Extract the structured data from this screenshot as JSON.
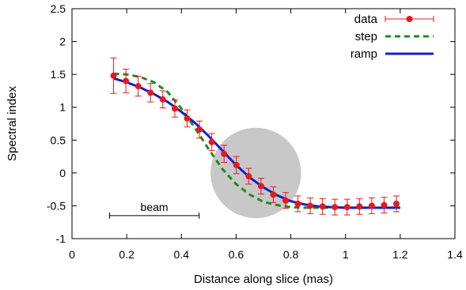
{
  "chart_data": {
    "type": "scatter",
    "title": "",
    "xlabel": "Distance along slice (mas)",
    "ylabel": "Spectral index",
    "xlim": [
      0,
      1.4
    ],
    "ylim": [
      -1,
      2.5
    ],
    "x_ticks": [
      0,
      0.2,
      0.4,
      0.6,
      0.8,
      1,
      1.2,
      1.4
    ],
    "x_tick_labels": [
      "0",
      "0.2",
      "0.4",
      "0.6",
      "0.8",
      "1",
      "1.2",
      "1.4"
    ],
    "y_ticks": [
      -1,
      -0.5,
      0,
      0.5,
      1,
      1.5,
      2,
      2.5
    ],
    "y_tick_labels": [
      "-1",
      "-0.5",
      "0",
      "0.5",
      "1",
      "1.5",
      "2",
      "2.5"
    ],
    "grid": false,
    "legend_position": "top-right",
    "series": [
      {
        "name": "data",
        "kind": "points-with-errorbars",
        "color": "#e8191e",
        "x": [
          0.152,
          0.197,
          0.242,
          0.287,
          0.332,
          0.376,
          0.421,
          0.466,
          0.511,
          0.556,
          0.601,
          0.646,
          0.691,
          0.736,
          0.781,
          0.826,
          0.871,
          0.916,
          0.961,
          1.006,
          1.051,
          1.096,
          1.141,
          1.186
        ],
        "y": [
          1.48,
          1.4,
          1.32,
          1.22,
          1.12,
          0.98,
          0.83,
          0.66,
          0.47,
          0.29,
          0.12,
          -0.05,
          -0.2,
          -0.33,
          -0.42,
          -0.47,
          -0.5,
          -0.51,
          -0.52,
          -0.52,
          -0.51,
          -0.5,
          -0.49,
          -0.47
        ],
        "yerr": [
          0.27,
          0.18,
          0.15,
          0.14,
          0.13,
          0.13,
          0.13,
          0.13,
          0.13,
          0.13,
          0.13,
          0.12,
          0.12,
          0.12,
          0.12,
          0.12,
          0.12,
          0.12,
          0.12,
          0.12,
          0.12,
          0.12,
          0.12,
          0.12
        ]
      },
      {
        "name": "step",
        "kind": "dashed-line",
        "color": "#1f8a1f",
        "x": [
          0.152,
          0.2,
          0.25,
          0.3,
          0.35,
          0.4,
          0.45,
          0.5,
          0.55,
          0.6,
          0.65,
          0.7,
          0.75,
          0.8,
          0.85,
          0.9,
          0.95,
          1.0,
          1.05,
          1.1,
          1.15,
          1.2
        ],
        "y": [
          1.51,
          1.5,
          1.46,
          1.38,
          1.23,
          0.98,
          0.68,
          0.36,
          0.06,
          -0.17,
          -0.33,
          -0.44,
          -0.49,
          -0.52,
          -0.53,
          -0.53,
          -0.53,
          -0.53,
          -0.53,
          -0.53,
          -0.53,
          -0.53
        ]
      },
      {
        "name": "ramp",
        "kind": "solid-line",
        "color": "#1520c8",
        "x": [
          0.152,
          0.2,
          0.25,
          0.3,
          0.35,
          0.4,
          0.45,
          0.5,
          0.55,
          0.6,
          0.65,
          0.7,
          0.75,
          0.8,
          0.85,
          0.9,
          0.95,
          1.0,
          1.05,
          1.1,
          1.15,
          1.2
        ],
        "y": [
          1.44,
          1.38,
          1.3,
          1.2,
          1.08,
          0.93,
          0.76,
          0.56,
          0.34,
          0.12,
          -0.07,
          -0.22,
          -0.34,
          -0.43,
          -0.48,
          -0.51,
          -0.52,
          -0.53,
          -0.53,
          -0.53,
          -0.53,
          -0.53
        ]
      }
    ],
    "annotations": {
      "beam_label": "beam",
      "beam_range": [
        0.137,
        0.465
      ],
      "beam_level": -0.65,
      "circle_center": [
        0.672,
        0.0
      ],
      "circle_color": "#c8c8c8"
    }
  }
}
